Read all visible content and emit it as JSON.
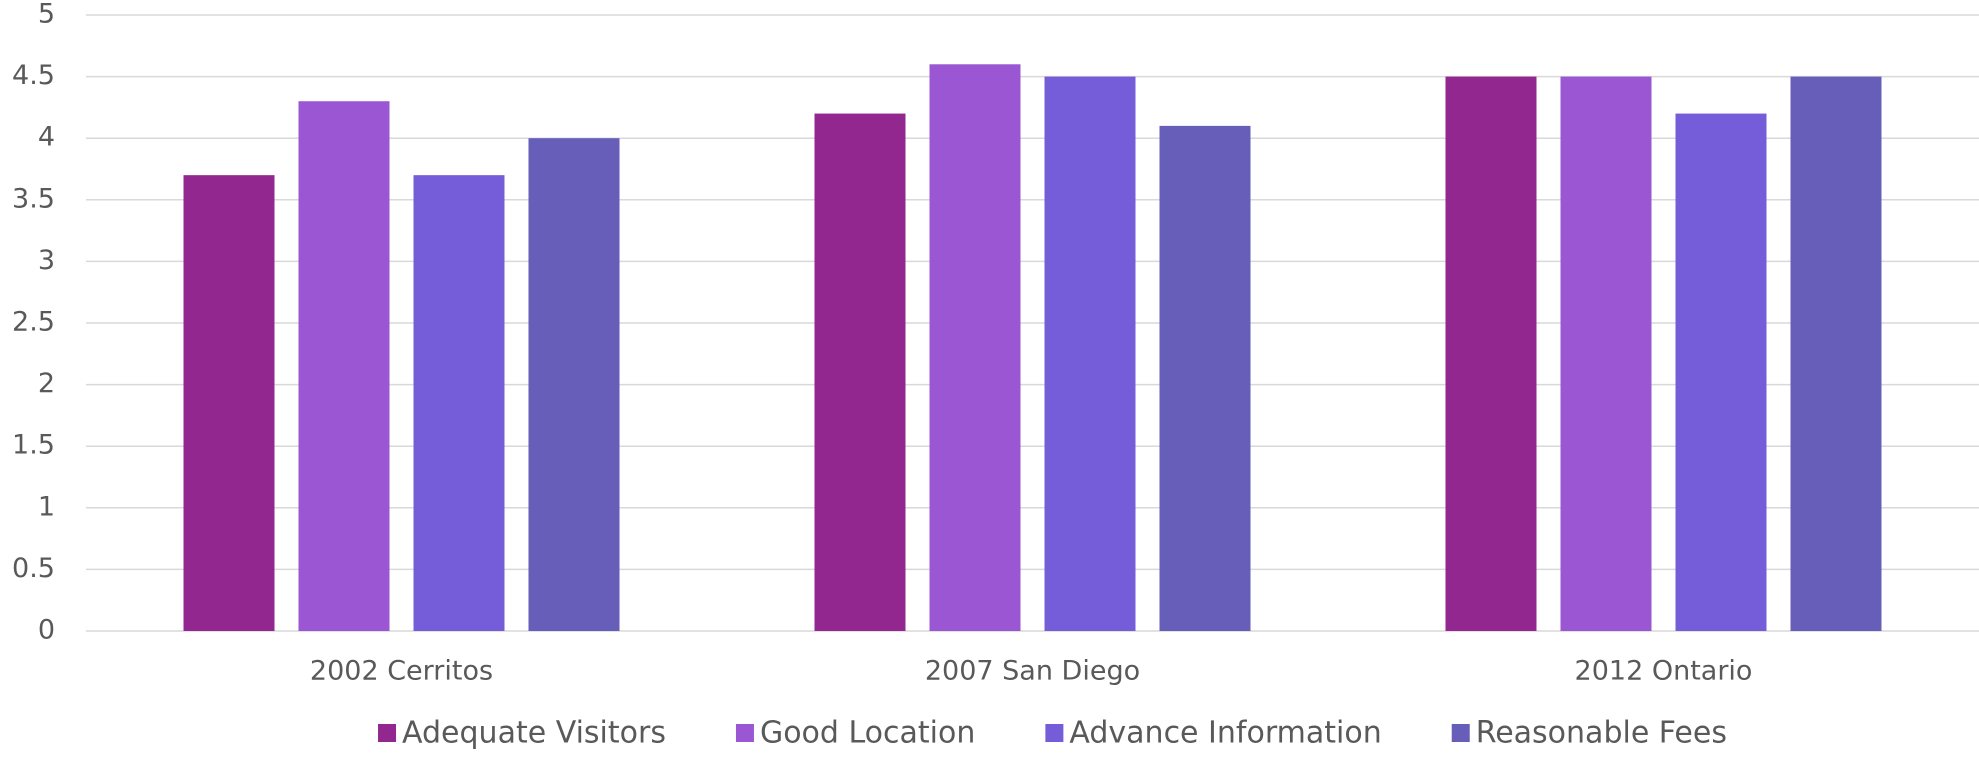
{
  "chart_data": {
    "type": "bar",
    "categories": [
      "2002 Cerritos",
      "2007 San Diego",
      "2012 Ontario"
    ],
    "series": [
      {
        "name": "Adequate Visitors",
        "color": "#92278f",
        "values": [
          3.7,
          4.2,
          4.5
        ]
      },
      {
        "name": "Good Location",
        "color": "#9b57d3",
        "values": [
          4.3,
          4.6,
          4.5
        ]
      },
      {
        "name": "Advance Information",
        "color": "#755dd9",
        "values": [
          3.7,
          4.5,
          4.2
        ]
      },
      {
        "name": "Reasonable Fees",
        "color": "#665eb8",
        "values": [
          4.0,
          4.1,
          4.5
        ]
      }
    ],
    "ylim": [
      0,
      5
    ],
    "yticks": [
      0,
      0.5,
      1,
      1.5,
      2,
      2.5,
      3,
      3.5,
      4,
      4.5,
      5
    ],
    "grid": true,
    "legend": "bottom"
  }
}
